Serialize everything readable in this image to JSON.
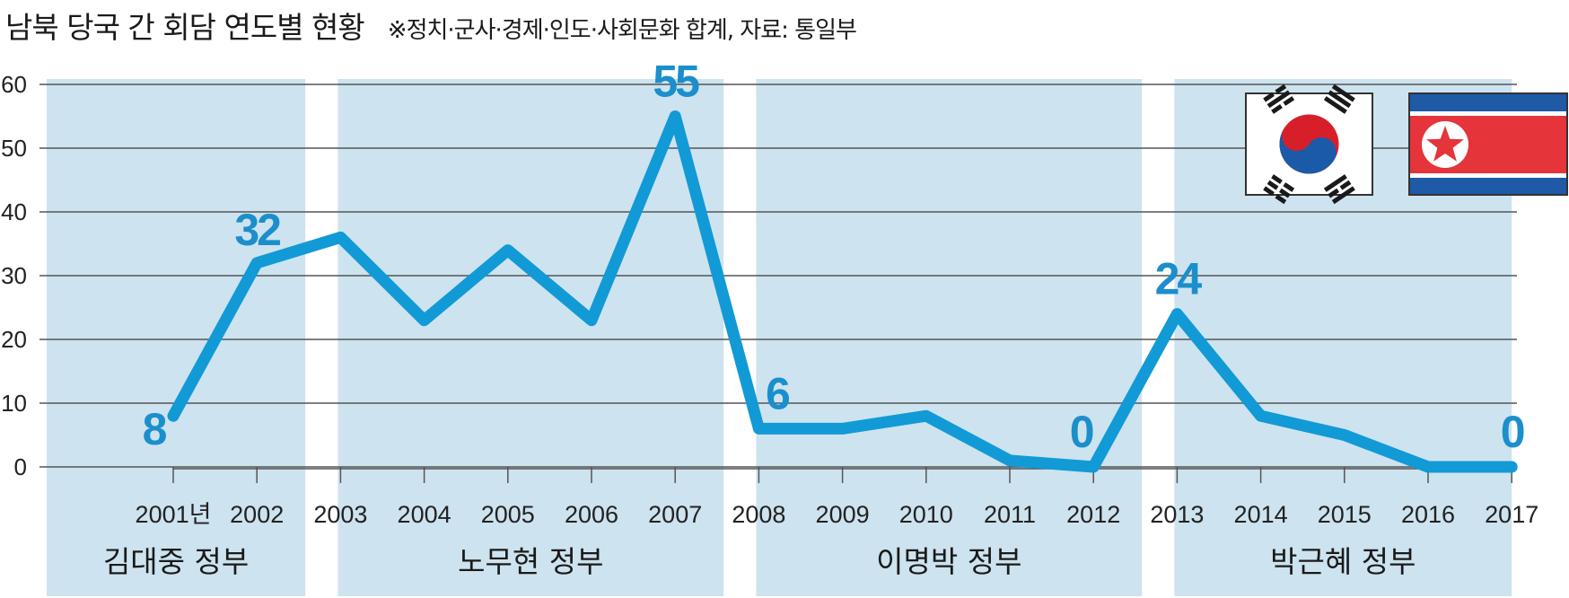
{
  "title": "남북 당국 간 회담 연도별 현황",
  "subtitle": "※정치·군사·경제·인도·사회문화 합계, 자료: 통일부",
  "chart_data": {
    "type": "line",
    "title": "남북 당국 간 회담 연도별 현황",
    "subtitle": "※정치·군사·경제·인도·사회문화 합계, 자료: 통일부",
    "x": [
      2001,
      2002,
      2003,
      2004,
      2005,
      2006,
      2007,
      2008,
      2009,
      2010,
      2011,
      2012,
      2013,
      2014,
      2015,
      2016,
      2017
    ],
    "x_tick_labels": [
      "2001년",
      "2002",
      "2003",
      "2004",
      "2005",
      "2006",
      "2007",
      "2008",
      "2009",
      "2010",
      "2011",
      "2012",
      "2013",
      "2014",
      "2015",
      "2016",
      "2017"
    ],
    "values": [
      8,
      32,
      36,
      23,
      34,
      23,
      55,
      6,
      6,
      8,
      1,
      0,
      24,
      8,
      5,
      0,
      0
    ],
    "ylim": [
      0,
      60
    ],
    "y_ticks": [
      0,
      10,
      20,
      30,
      40,
      50,
      60
    ],
    "data_labels": [
      {
        "x": 2001,
        "text": "8"
      },
      {
        "x": 2002,
        "text": "32"
      },
      {
        "x": 2007,
        "text": "55"
      },
      {
        "x": 2008,
        "text": "6"
      },
      {
        "x": 2012,
        "text": "0"
      },
      {
        "x": 2013,
        "text": "24"
      },
      {
        "x": 2017,
        "text": "0"
      }
    ],
    "periods": [
      {
        "label": "김대중 정부",
        "start": 2001,
        "end": 2002
      },
      {
        "label": "노무현 정부",
        "start": 2003,
        "end": 2007
      },
      {
        "label": "이명박 정부",
        "start": 2008,
        "end": 2012
      },
      {
        "label": "박근혜 정부",
        "start": 2013,
        "end": 2017
      }
    ],
    "grid": true,
    "legend": "none"
  },
  "flags": {
    "south": {
      "name": "south-korea-flag",
      "red": "#d71f2a",
      "blue": "#1b5aa8",
      "black": "#1a1a1a"
    },
    "north": {
      "name": "north-korea-flag",
      "red": "#e5343a",
      "blue": "#1e5aa6",
      "white": "#ffffff"
    }
  },
  "colors": {
    "line": "#119ad6",
    "label": "#1b8fcc",
    "band": "#cde3ef",
    "grid": "#555555"
  }
}
